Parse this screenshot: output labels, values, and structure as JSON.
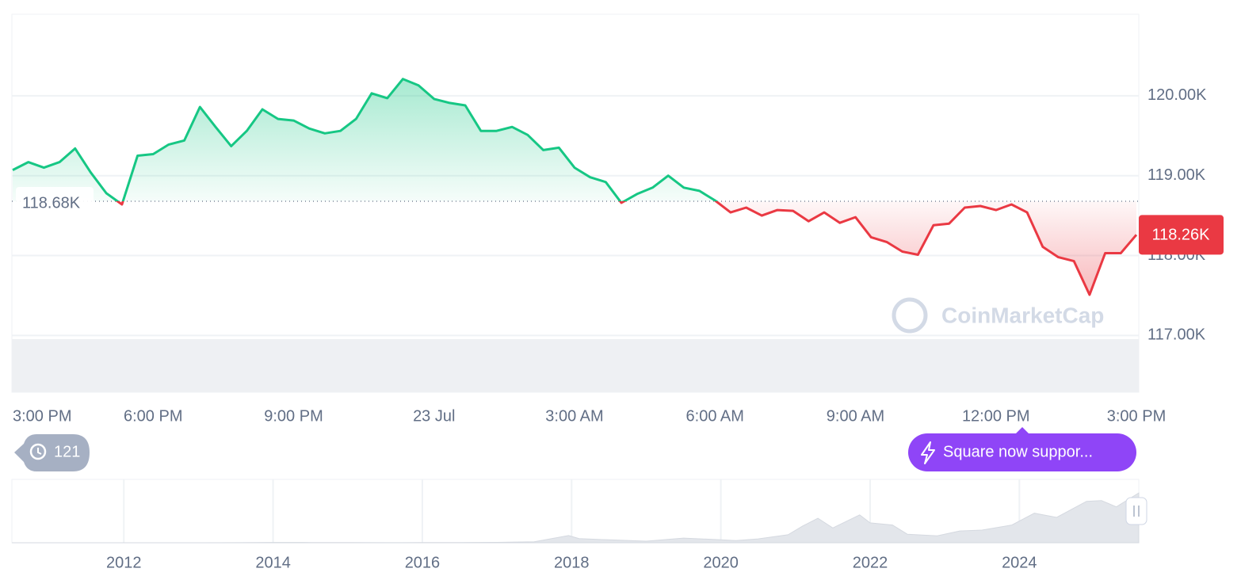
{
  "chart_data": [
    {
      "type": "line",
      "x": [
        0,
        20,
        40,
        60,
        80,
        100,
        120,
        140,
        160,
        180,
        200,
        220,
        240,
        260,
        280,
        300,
        320,
        340,
        360,
        380,
        400,
        420,
        440,
        460,
        480,
        500,
        520,
        540,
        560,
        580,
        600,
        620,
        640,
        660,
        680,
        700,
        720,
        740,
        760,
        780,
        800,
        820,
        840,
        860,
        880,
        900,
        920,
        940,
        960,
        980,
        1000,
        1020,
        1040,
        1060,
        1080,
        1100,
        1120,
        1140,
        1160,
        1180,
        1200,
        1220,
        1240,
        1260,
        1280,
        1300,
        1320,
        1340,
        1360,
        1380,
        1400,
        1420,
        1440
      ],
      "values": [
        119070,
        119170,
        119100,
        119170,
        119340,
        119040,
        118780,
        118640,
        119250,
        119270,
        119390,
        119440,
        119860,
        119610,
        119370,
        119560,
        119830,
        119710,
        119690,
        119590,
        119530,
        119560,
        119710,
        120030,
        119970,
        120210,
        120130,
        119960,
        119910,
        119880,
        119560,
        119560,
        119610,
        119510,
        119320,
        119350,
        119100,
        118980,
        118920,
        118660,
        118770,
        118850,
        119000,
        118850,
        118810,
        118690,
        118540,
        118600,
        118500,
        118570,
        118560,
        118430,
        118540,
        118410,
        118480,
        118230,
        118170,
        118050,
        118010,
        118380,
        118400,
        118600,
        118620,
        118570,
        118640,
        118540,
        118110,
        117980,
        117930,
        117510,
        118030,
        118030,
        118260
      ],
      "up_color": "#16c784",
      "down_color": "#ea3943",
      "xlim": [
        0,
        1440
      ],
      "xticks": [
        {
          "value": 0,
          "label": "3:00 PM"
        },
        {
          "value": 180,
          "label": "6:00 PM"
        },
        {
          "value": 360,
          "label": "9:00 PM"
        },
        {
          "value": 540,
          "label": "23 Jul"
        },
        {
          "value": 720,
          "label": "3:00 AM"
        },
        {
          "value": 900,
          "label": "6:00 AM"
        },
        {
          "value": 1080,
          "label": "9:00 AM"
        },
        {
          "value": 1260,
          "label": "12:00 PM"
        },
        {
          "value": 1440,
          "label": "3:00 PM"
        }
      ],
      "ylim": [
        116290,
        121020
      ],
      "yticks": [
        {
          "value": 117000,
          "label": "117.00K"
        },
        {
          "value": 118000,
          "label": "118.00K"
        },
        {
          "value": 119000,
          "label": "119.00K"
        },
        {
          "value": 120000,
          "label": "120.00K"
        }
      ],
      "grid": true,
      "baseline": {
        "value": 118680,
        "label": "118.68K"
      },
      "current_price": {
        "value": 118260,
        "label": "118.26K"
      }
    },
    {
      "type": "area",
      "x": [
        2010.5,
        2011,
        2011.5,
        2012,
        2012.5,
        2013,
        2013.5,
        2014,
        2014.5,
        2015,
        2015.5,
        2016,
        2016.5,
        2017,
        2017.5,
        2017.96,
        2018.1,
        2018.5,
        2019,
        2019.5,
        2020,
        2020.2,
        2020.5,
        2020.9,
        2021.1,
        2021.3,
        2021.5,
        2021.86,
        2022,
        2022.3,
        2022.5,
        2022.9,
        2023.2,
        2023.5,
        2023.9,
        2024.2,
        2024.5,
        2024.9,
        2025.1,
        2025.3,
        2025.6
      ],
      "values": [
        0,
        1,
        15,
        5,
        7,
        13,
        100,
        800,
        600,
        300,
        250,
        400,
        650,
        1000,
        2500,
        17000,
        10000,
        7000,
        3700,
        11000,
        7200,
        5000,
        9200,
        19000,
        40000,
        58000,
        35000,
        66000,
        47000,
        42000,
        20000,
        16500,
        28000,
        30000,
        42000,
        70000,
        60000,
        98000,
        100000,
        85000,
        118000
      ],
      "color": "#e3e6eb",
      "xlim": [
        2010.5,
        2025.6
      ],
      "xticks": [
        2012,
        2014,
        2016,
        2018,
        2020,
        2022,
        2024
      ],
      "ylim": [
        0,
        150000
      ]
    }
  ],
  "watermark": "CoinMarketCap",
  "history_badge": "121",
  "announcement": "Square now suppor..."
}
